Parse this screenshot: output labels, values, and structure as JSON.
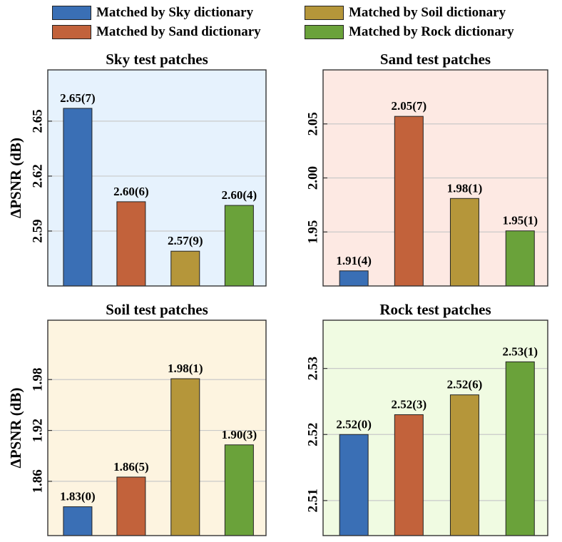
{
  "legend": {
    "items": [
      {
        "label": "Matched by Sky dictionary",
        "color": "#3a6fb5"
      },
      {
        "label": "Matched by Soil dictionary",
        "color": "#b5963a"
      },
      {
        "label": "Matched by Sand dictionary",
        "color": "#c2623b"
      },
      {
        "label": "Matched by Rock dictionary",
        "color": "#6aa23a"
      }
    ]
  },
  "y_axis_label": "ΔPSNR (dB)",
  "chart_data": [
    {
      "type": "bar",
      "title": "Sky test patches",
      "background": "#e6f2fd",
      "categories": [
        "Matched by Sky dictionary",
        "Matched by Sand dictionary",
        "Matched by Soil dictionary",
        "Matched by Rock dictionary"
      ],
      "values": [
        2.657,
        2.606,
        2.579,
        2.604
      ],
      "data_labels": [
        "2.65(7)",
        "2.60(6)",
        "2.57(9)",
        "2.60(4)"
      ],
      "colors": [
        "#3a6fb5",
        "#c2623b",
        "#b5963a",
        "#6aa23a"
      ],
      "yticks": [
        2.59,
        2.62,
        2.65
      ],
      "ytick_labels": [
        "2.59",
        "2.62",
        "2.65"
      ],
      "ylim": [
        2.56,
        2.678
      ],
      "ylabel": "ΔPSNR (dB)",
      "grid": true
    },
    {
      "type": "bar",
      "title": "Sand test patches",
      "background": "#fde9e3",
      "categories": [
        "Matched by Sky dictionary",
        "Matched by Sand dictionary",
        "Matched by Soil dictionary",
        "Matched by Rock dictionary"
      ],
      "values": [
        1.914,
        2.057,
        1.981,
        1.951
      ],
      "data_labels": [
        "1.91(4)",
        "2.05(7)",
        "1.98(1)",
        "1.95(1)"
      ],
      "colors": [
        "#3a6fb5",
        "#c2623b",
        "#b5963a",
        "#6aa23a"
      ],
      "yticks": [
        1.95,
        2.0,
        2.05
      ],
      "ytick_labels": [
        "1.95",
        "2.00",
        "2.05"
      ],
      "ylim": [
        1.9,
        2.1
      ],
      "ylabel": "",
      "grid": true
    },
    {
      "type": "bar",
      "title": "Soil test patches",
      "background": "#fdf4e0",
      "categories": [
        "Matched by Sky dictionary",
        "Matched by Sand dictionary",
        "Matched by Soil dictionary",
        "Matched by Rock dictionary"
      ],
      "values": [
        1.83,
        1.865,
        1.981,
        1.903
      ],
      "data_labels": [
        "1.83(0)",
        "1.86(5)",
        "1.98(1)",
        "1.90(3)"
      ],
      "colors": [
        "#3a6fb5",
        "#c2623b",
        "#b5963a",
        "#6aa23a"
      ],
      "yticks": [
        1.86,
        1.92,
        1.98
      ],
      "ytick_labels": [
        "1.86",
        "1.92",
        "1.98"
      ],
      "ylim": [
        1.796,
        2.05
      ],
      "ylabel": "ΔPSNR (dB)",
      "grid": true
    },
    {
      "type": "bar",
      "title": "Rock test patches",
      "background": "#f0fbe2",
      "categories": [
        "Matched by Sky dictionary",
        "Matched by Sand dictionary",
        "Matched by Soil dictionary",
        "Matched by Rock dictionary"
      ],
      "values": [
        2.52,
        2.523,
        2.526,
        2.531
      ],
      "data_labels": [
        "2.52(0)",
        "2.52(3)",
        "2.52(6)",
        "2.53(1)"
      ],
      "colors": [
        "#3a6fb5",
        "#c2623b",
        "#b5963a",
        "#6aa23a"
      ],
      "yticks": [
        2.51,
        2.52,
        2.53
      ],
      "ytick_labels": [
        "2.51",
        "2.52",
        "2.53"
      ],
      "ylim": [
        2.5047,
        2.5373
      ],
      "ylabel": "",
      "grid": true
    }
  ]
}
